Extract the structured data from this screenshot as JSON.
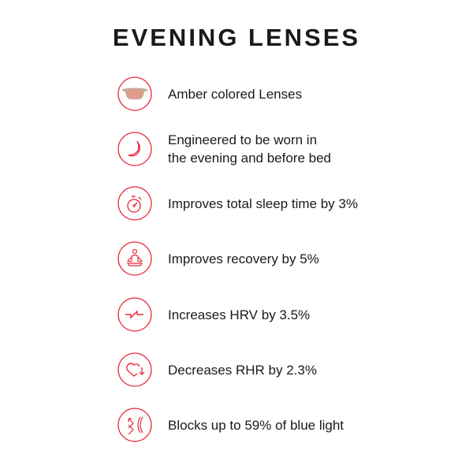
{
  "title": "EVENING LENSES",
  "accent_color": "#e8283c",
  "features": [
    {
      "icon": "sunglasses-icon",
      "lines": [
        "Amber colored Lenses"
      ]
    },
    {
      "icon": "moon-icon",
      "lines": [
        "Engineered to be worn in",
        "the evening and before bed"
      ]
    },
    {
      "icon": "stopwatch-icon",
      "lines": [
        "Improves total sleep time by 3%"
      ]
    },
    {
      "icon": "meditation-icon",
      "lines": [
        "Improves recovery by 5%"
      ]
    },
    {
      "icon": "heart-rate-variability-icon",
      "lines": [
        "Increases HRV by 3.5%"
      ]
    },
    {
      "icon": "heart-down-icon",
      "lines": [
        "Decreases RHR by 2.3%"
      ]
    },
    {
      "icon": "blue-light-block-icon",
      "lines": [
        "Blocks up to 59% of blue light"
      ]
    }
  ]
}
